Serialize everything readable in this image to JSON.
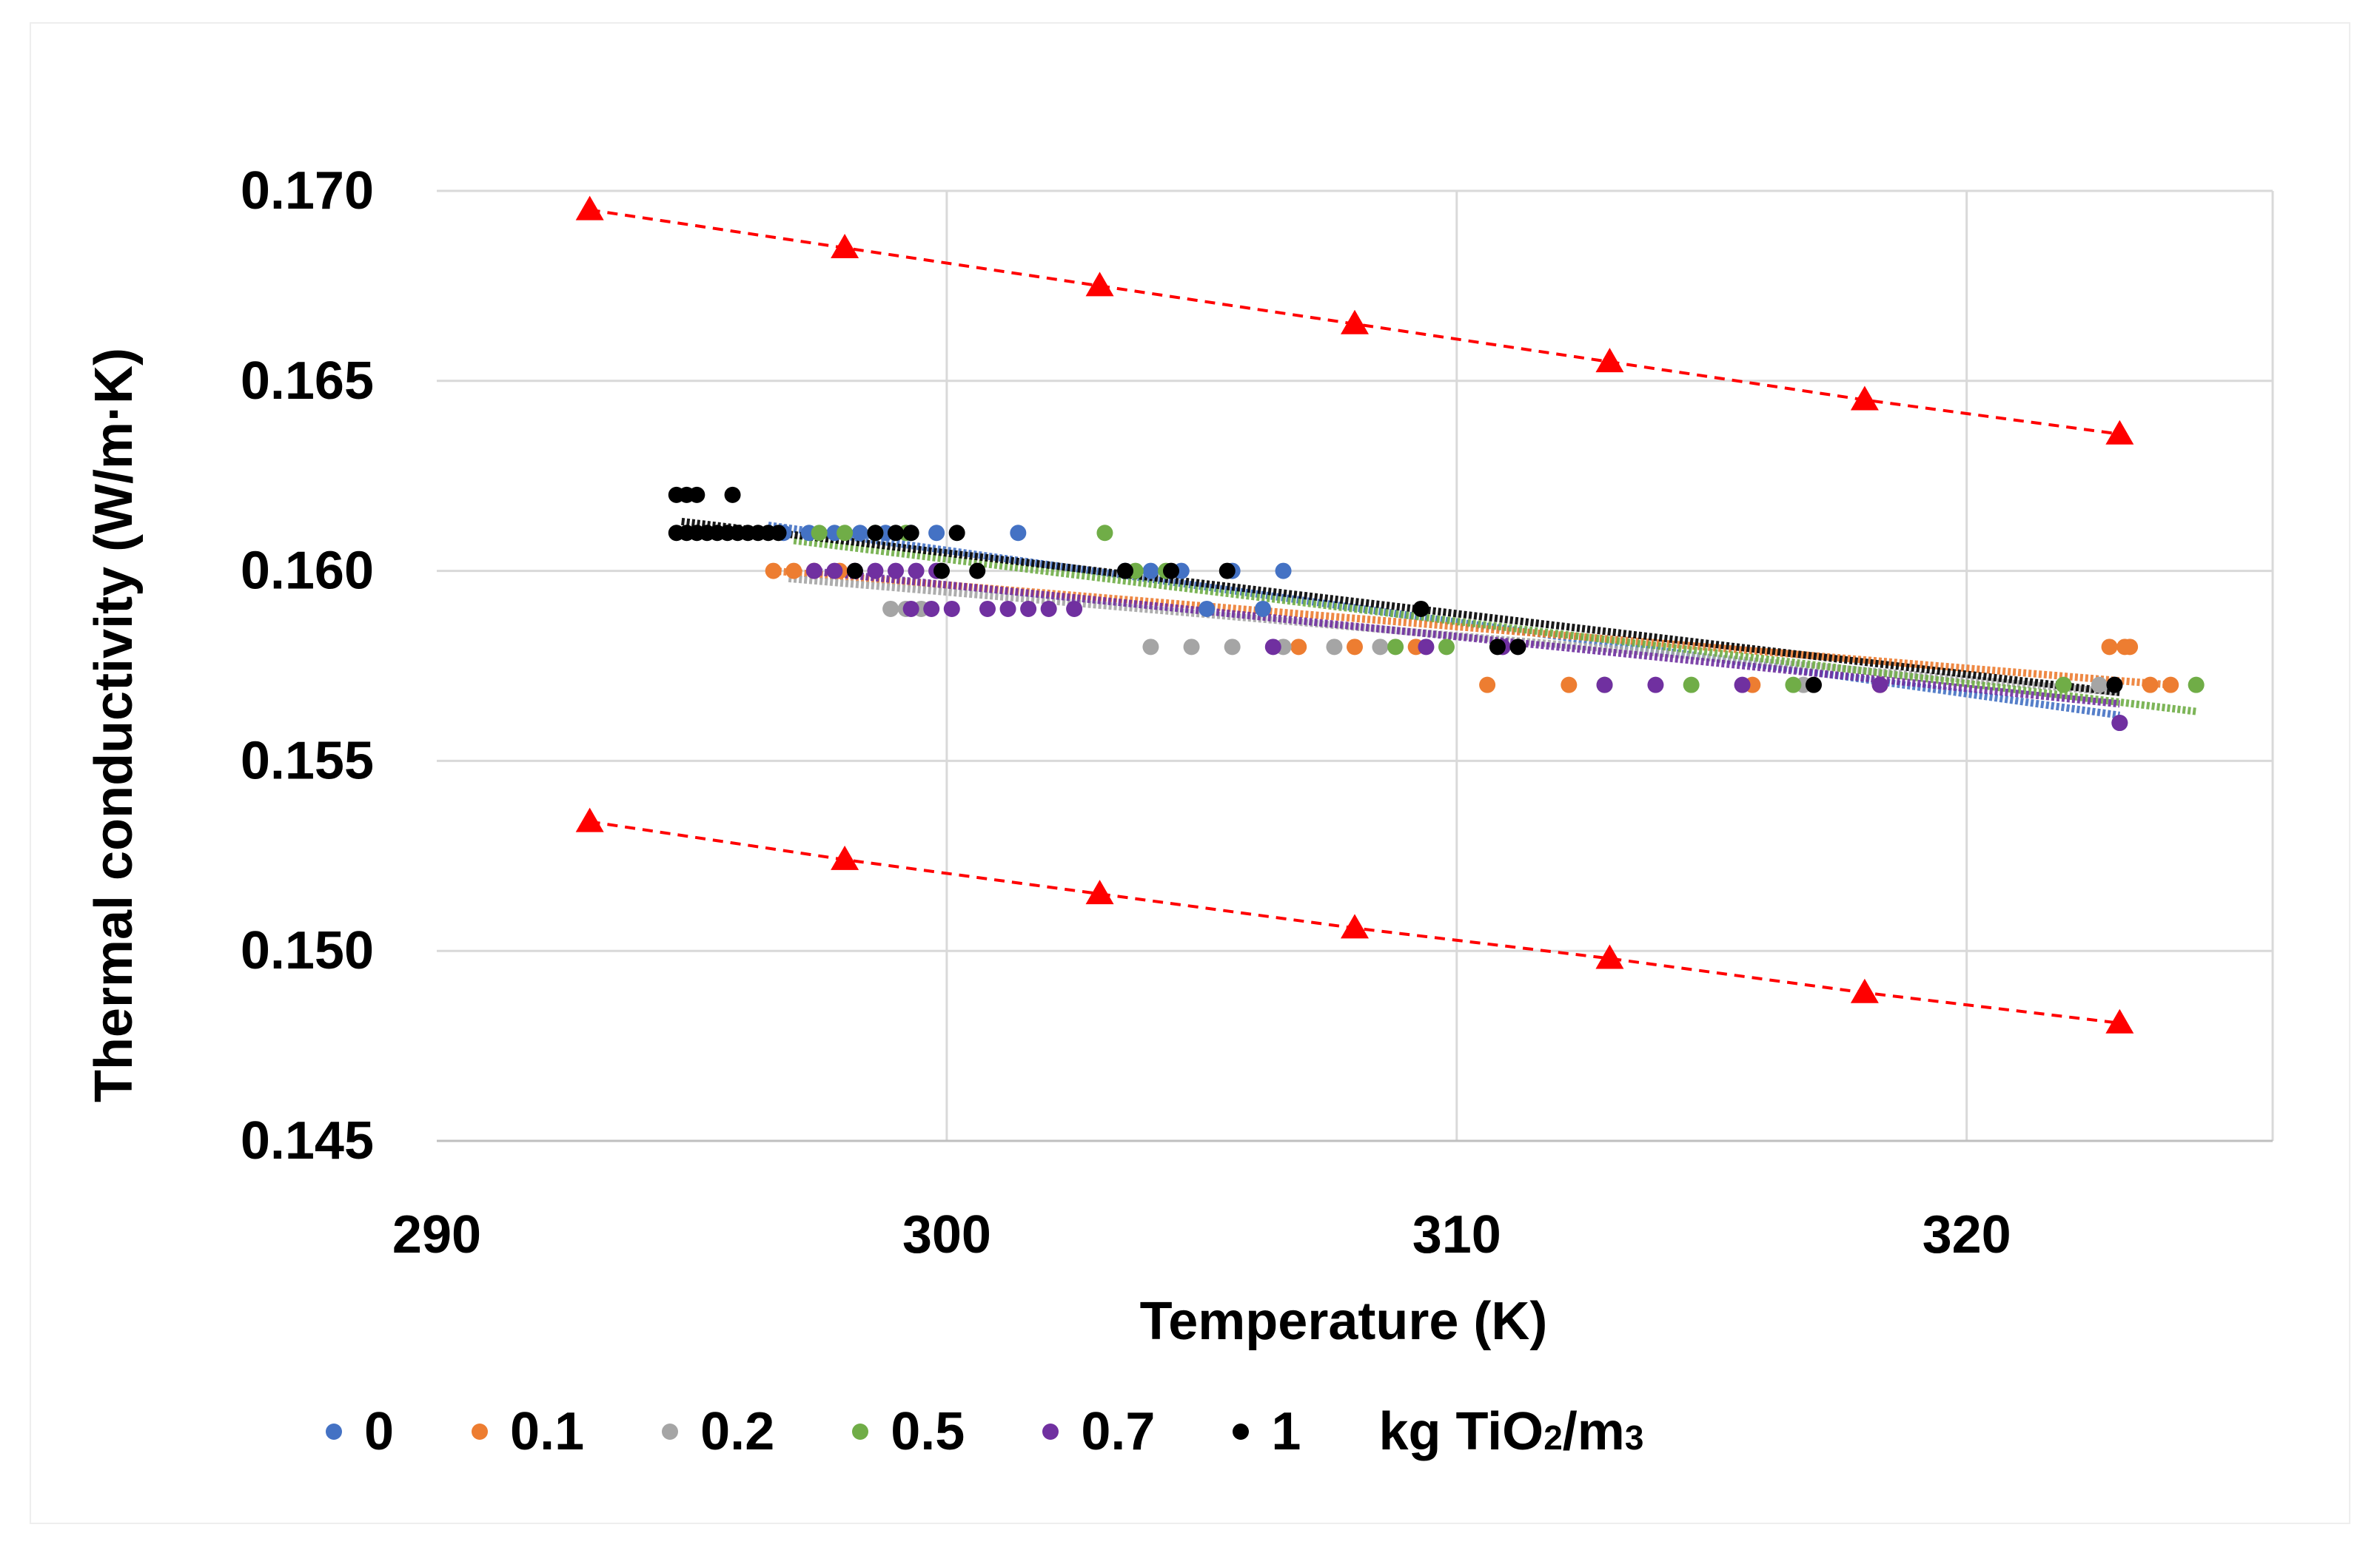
{
  "chart_data": {
    "type": "scatter",
    "xlabel": "Temperature (K)",
    "ylabel": "Thermal conductivity (W/m·K)",
    "xlim": [
      290,
      326
    ],
    "ylim": [
      0.145,
      0.17
    ],
    "x_ticks": [
      290,
      300,
      310,
      320
    ],
    "y_ticks": [
      0.145,
      0.15,
      0.155,
      0.16,
      0.165,
      0.17
    ],
    "x_tick_labels": [
      "290",
      "300",
      "310",
      "320"
    ],
    "y_tick_labels": [
      "0.145",
      "0.150",
      "0.155",
      "0.160",
      "0.165",
      "0.170"
    ],
    "grid": true,
    "legend_position": "bottom",
    "legend_unit": {
      "prefix": "kg TiO",
      "sub": "2",
      "mid": "/m",
      "sup": "3"
    },
    "series": [
      {
        "name": "0",
        "color": "#4472C4",
        "trend": [
          [
            296.5,
            0.1612
          ],
          [
            323,
            0.1562
          ]
        ],
        "points": [
          [
            296.8,
            0.161
          ],
          [
            297.3,
            0.161
          ],
          [
            297.8,
            0.161
          ],
          [
            298.3,
            0.161
          ],
          [
            298.8,
            0.161
          ],
          [
            299.3,
            0.161
          ],
          [
            299.8,
            0.161
          ],
          [
            301.4,
            0.161
          ],
          [
            303.5,
            0.16
          ],
          [
            304.0,
            0.16
          ],
          [
            304.6,
            0.16
          ],
          [
            305.6,
            0.16
          ],
          [
            306.6,
            0.16
          ],
          [
            306.2,
            0.159
          ],
          [
            305.1,
            0.159
          ],
          [
            322.9,
            0.157
          ],
          [
            323.0,
            0.156
          ]
        ]
      },
      {
        "name": "0.1",
        "color": "#ED7D31",
        "trend": [
          [
            296.6,
            0.16
          ],
          [
            324,
            0.157
          ]
        ],
        "points": [
          [
            296.6,
            0.16
          ],
          [
            297.0,
            0.16
          ],
          [
            297.4,
            0.16
          ],
          [
            297.9,
            0.16
          ],
          [
            306.9,
            0.158
          ],
          [
            308.0,
            0.158
          ],
          [
            309.2,
            0.158
          ],
          [
            310.6,
            0.157
          ],
          [
            312.2,
            0.157
          ],
          [
            315.8,
            0.157
          ],
          [
            318.3,
            0.157
          ],
          [
            322.8,
            0.158
          ],
          [
            323.1,
            0.158
          ],
          [
            323.2,
            0.158
          ],
          [
            323.6,
            0.157
          ],
          [
            324.0,
            0.157
          ]
        ]
      },
      {
        "name": "0.2",
        "color": "#A5A5A5",
        "trend": [
          [
            296.9,
            0.1598
          ],
          [
            323,
            0.1568
          ]
        ],
        "points": [
          [
            298.9,
            0.159
          ],
          [
            299.2,
            0.159
          ],
          [
            299.5,
            0.159
          ],
          [
            304.0,
            0.158
          ],
          [
            304.8,
            0.158
          ],
          [
            305.6,
            0.158
          ],
          [
            306.6,
            0.158
          ],
          [
            307.6,
            0.158
          ],
          [
            308.5,
            0.158
          ],
          [
            316.8,
            0.157
          ],
          [
            322.6,
            0.157
          ]
        ]
      },
      {
        "name": "0.5",
        "color": "#70AD47",
        "trend": [
          [
            297,
            0.1608
          ],
          [
            324.5,
            0.1563
          ]
        ],
        "points": [
          [
            297.5,
            0.161
          ],
          [
            298.0,
            0.161
          ],
          [
            298.6,
            0.161
          ],
          [
            299.2,
            0.161
          ],
          [
            303.1,
            0.161
          ],
          [
            303.7,
            0.16
          ],
          [
            304.3,
            0.16
          ],
          [
            308.8,
            0.158
          ],
          [
            309.8,
            0.158
          ],
          [
            312.9,
            0.157
          ],
          [
            314.6,
            0.157
          ],
          [
            316.6,
            0.157
          ],
          [
            321.9,
            0.157
          ],
          [
            324.5,
            0.157
          ]
        ]
      },
      {
        "name": "0.7",
        "color": "#7030A0",
        "trend": [
          [
            297.3,
            0.16
          ],
          [
            323,
            0.1565
          ]
        ],
        "points": [
          [
            297.4,
            0.16
          ],
          [
            297.8,
            0.16
          ],
          [
            298.2,
            0.16
          ],
          [
            298.6,
            0.16
          ],
          [
            299.0,
            0.16
          ],
          [
            299.4,
            0.16
          ],
          [
            299.8,
            0.16
          ],
          [
            299.3,
            0.159
          ],
          [
            299.7,
            0.159
          ],
          [
            300.1,
            0.159
          ],
          [
            300.8,
            0.159
          ],
          [
            301.2,
            0.159
          ],
          [
            301.6,
            0.159
          ],
          [
            302.0,
            0.159
          ],
          [
            302.5,
            0.159
          ],
          [
            306.4,
            0.158
          ],
          [
            309.4,
            0.158
          ],
          [
            310.9,
            0.158
          ],
          [
            312.9,
            0.157
          ],
          [
            313.9,
            0.157
          ],
          [
            315.6,
            0.157
          ],
          [
            318.3,
            0.157
          ],
          [
            323.0,
            0.156
          ]
        ]
      },
      {
        "name": "1",
        "color": "#000000",
        "trend": [
          [
            294.8,
            0.1613
          ],
          [
            323,
            0.1568
          ]
        ],
        "points": [
          [
            294.7,
            0.162
          ],
          [
            294.9,
            0.162
          ],
          [
            295.1,
            0.162
          ],
          [
            295.8,
            0.162
          ],
          [
            294.7,
            0.161
          ],
          [
            294.9,
            0.161
          ],
          [
            295.1,
            0.161
          ],
          [
            295.3,
            0.161
          ],
          [
            295.5,
            0.161
          ],
          [
            295.7,
            0.161
          ],
          [
            295.9,
            0.161
          ],
          [
            296.1,
            0.161
          ],
          [
            296.3,
            0.161
          ],
          [
            296.5,
            0.161
          ],
          [
            296.7,
            0.161
          ],
          [
            298.6,
            0.161
          ],
          [
            299.0,
            0.161
          ],
          [
            299.3,
            0.161
          ],
          [
            300.2,
            0.161
          ],
          [
            298.2,
            0.16
          ],
          [
            299.9,
            0.16
          ],
          [
            300.6,
            0.16
          ],
          [
            303.5,
            0.16
          ],
          [
            304.4,
            0.16
          ],
          [
            305.5,
            0.16
          ],
          [
            309.3,
            0.159
          ],
          [
            310.8,
            0.158
          ],
          [
            311.2,
            0.158
          ],
          [
            317.0,
            0.157
          ],
          [
            322.9,
            0.157
          ]
        ]
      }
    ],
    "bound_lines": [
      {
        "name": "upper-bound",
        "color": "#FF0000",
        "points": [
          [
            293,
            0.1695
          ],
          [
            298,
            0.1685
          ],
          [
            303,
            0.1675
          ],
          [
            308,
            0.1665
          ],
          [
            313,
            0.1655
          ],
          [
            318,
            0.1645
          ],
          [
            323,
            0.1636
          ]
        ]
      },
      {
        "name": "lower-bound",
        "color": "#FF0000",
        "points": [
          [
            293,
            0.1534
          ],
          [
            298,
            0.1524
          ],
          [
            303,
            0.1515
          ],
          [
            308,
            0.1506
          ],
          [
            313,
            0.1498
          ],
          [
            318,
            0.1489
          ],
          [
            323,
            0.1481
          ]
        ]
      }
    ]
  }
}
